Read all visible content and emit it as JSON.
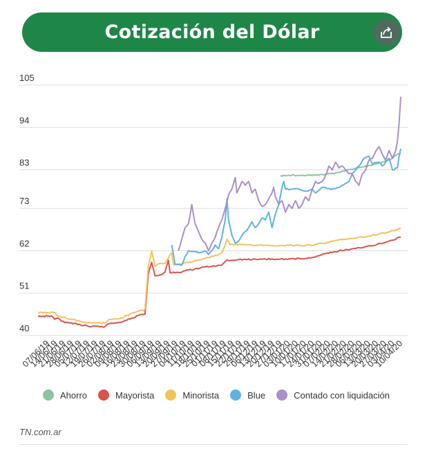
{
  "header": {
    "title": "Cotización del Dólar",
    "share_icon": "share-icon"
  },
  "chart_data": {
    "type": "line",
    "ylim": [
      40,
      105
    ],
    "yticks": [
      40,
      51,
      62,
      73,
      83,
      94,
      105
    ],
    "n_points": 218,
    "x_tick_labels": [
      "07/06/19",
      "14/06/19",
      "21/06/19",
      "28/06/19",
      "05/07/19",
      "12/07/19",
      "19/07/19",
      "26/07/19",
      "02/08/19",
      "09/08/19",
      "16/08/19",
      "23/08/19",
      "30/08/19",
      "06/09/19",
      "13/09/19",
      "20/09/19",
      "27/09/19",
      "04/10/19",
      "11/10/19",
      "18/10/19",
      "25/10/19",
      "01/11/19",
      "08/11/19",
      "15/11/19",
      "22/11/19",
      "29/11/19",
      "06/12/19",
      "13/12/19",
      "20/12/19",
      "27/12/19",
      "03/01/20",
      "10/01/20",
      "17/01/20",
      "24/01/20",
      "31/01/20",
      "07/02/20",
      "14/02/20",
      "21/02/20",
      "28/02/20",
      "06/03/20",
      "13/03/20",
      "20/03/20",
      "27/03/20",
      "03/04/20",
      "10/04/20"
    ],
    "series": [
      {
        "name": "Ahorro",
        "color": "#8dc3a1",
        "keyframes": [
          [
            145,
            81.5
          ],
          [
            150,
            81.6
          ],
          [
            160,
            81.5
          ],
          [
            170,
            81.8
          ],
          [
            178,
            82.2
          ],
          [
            185,
            83.0
          ],
          [
            195,
            83.8
          ],
          [
            205,
            84.8
          ],
          [
            210,
            85.5
          ],
          [
            214,
            86.8
          ],
          [
            217,
            87.3
          ]
        ]
      },
      {
        "name": "Mayorista",
        "color": "#d9534f",
        "keyframes": [
          [
            0,
            45
          ],
          [
            8,
            45.1
          ],
          [
            10,
            44.2
          ],
          [
            12,
            44.5
          ],
          [
            14,
            43.7
          ],
          [
            20,
            43.3
          ],
          [
            30,
            42.4
          ],
          [
            40,
            42.3
          ],
          [
            42,
            43
          ],
          [
            48,
            43.4
          ],
          [
            55,
            44.3
          ],
          [
            60,
            45.2
          ],
          [
            64,
            45.5
          ],
          [
            66,
            56
          ],
          [
            68,
            59
          ],
          [
            70,
            55.5
          ],
          [
            74,
            55.8
          ],
          [
            76,
            56.5
          ],
          [
            78,
            59.5
          ],
          [
            79,
            56.3
          ],
          [
            84,
            56.4
          ],
          [
            90,
            57
          ],
          [
            100,
            57.8
          ],
          [
            110,
            58.3
          ],
          [
            113,
            59.6
          ],
          [
            120,
            59.7
          ],
          [
            130,
            59.8
          ],
          [
            140,
            59.9
          ],
          [
            150,
            59.9
          ],
          [
            160,
            60
          ],
          [
            165,
            60.3
          ],
          [
            170,
            61
          ],
          [
            180,
            62
          ],
          [
            190,
            62.6
          ],
          [
            200,
            63.3
          ],
          [
            210,
            64.5
          ],
          [
            217,
            65.5
          ]
        ]
      },
      {
        "name": "Minorista",
        "color": "#efc45c",
        "keyframes": [
          [
            0,
            46
          ],
          [
            10,
            46
          ],
          [
            12,
            45
          ],
          [
            20,
            44.2
          ],
          [
            30,
            43.3
          ],
          [
            40,
            43.2
          ],
          [
            42,
            44
          ],
          [
            50,
            44.6
          ],
          [
            58,
            46
          ],
          [
            64,
            46.8
          ],
          [
            66,
            58
          ],
          [
            68,
            62
          ],
          [
            70,
            58
          ],
          [
            72,
            58.6
          ],
          [
            76,
            58.7
          ],
          [
            79,
            61
          ],
          [
            80,
            61.5
          ],
          [
            81,
            58.4
          ],
          [
            86,
            58.5
          ],
          [
            90,
            59
          ],
          [
            100,
            60
          ],
          [
            108,
            61
          ],
          [
            110,
            61.5
          ],
          [
            112,
            63.5
          ],
          [
            113,
            65
          ],
          [
            115,
            63.6
          ],
          [
            120,
            63.6
          ],
          [
            130,
            63.4
          ],
          [
            140,
            63.4
          ],
          [
            150,
            63.4
          ],
          [
            160,
            63.4
          ],
          [
            165,
            63.5
          ],
          [
            170,
            63.9
          ],
          [
            180,
            64.8
          ],
          [
            190,
            65.3
          ],
          [
            200,
            66
          ],
          [
            210,
            66.9
          ],
          [
            217,
            67.8
          ]
        ]
      },
      {
        "name": "Blue",
        "color": "#5fb2e2",
        "keyframes": [
          [
            80,
            63.5
          ],
          [
            82,
            58.5
          ],
          [
            86,
            58.3
          ],
          [
            88,
            60.5
          ],
          [
            90,
            62
          ],
          [
            92,
            61.8
          ],
          [
            96,
            61.5
          ],
          [
            100,
            62
          ],
          [
            102,
            61
          ],
          [
            104,
            62
          ],
          [
            106,
            63.5
          ],
          [
            108,
            62.5
          ],
          [
            110,
            65.5
          ],
          [
            112,
            70
          ],
          [
            113,
            75.5
          ],
          [
            114,
            70
          ],
          [
            116,
            66
          ],
          [
            118,
            64
          ],
          [
            120,
            64.5
          ],
          [
            122,
            66
          ],
          [
            124,
            67
          ],
          [
            126,
            68
          ],
          [
            128,
            69.5
          ],
          [
            130,
            68
          ],
          [
            132,
            69
          ],
          [
            134,
            70.5
          ],
          [
            136,
            70
          ],
          [
            138,
            72
          ],
          [
            140,
            68
          ],
          [
            142,
            71.5
          ],
          [
            144,
            74
          ],
          [
            146,
            78.5
          ],
          [
            147,
            80
          ],
          [
            148,
            78
          ],
          [
            152,
            78
          ],
          [
            156,
            78
          ],
          [
            160,
            77.5
          ],
          [
            164,
            78
          ],
          [
            166,
            77
          ],
          [
            170,
            78.5
          ],
          [
            176,
            78
          ],
          [
            180,
            78.4
          ],
          [
            182,
            79
          ],
          [
            186,
            80
          ],
          [
            188,
            82
          ],
          [
            192,
            84
          ],
          [
            195,
            86
          ],
          [
            198,
            86.5
          ],
          [
            200,
            84.5
          ],
          [
            204,
            85
          ],
          [
            206,
            84
          ],
          [
            210,
            86
          ],
          [
            212,
            83
          ],
          [
            215,
            83.5
          ],
          [
            216,
            86.5
          ],
          [
            217,
            88.5
          ]
        ]
      },
      {
        "name": "Contado con liquidación",
        "color": "#a890cb",
        "keyframes": [
          [
            84,
            62
          ],
          [
            86,
            65
          ],
          [
            88,
            68
          ],
          [
            90,
            69
          ],
          [
            92,
            74
          ],
          [
            94,
            69
          ],
          [
            96,
            67
          ],
          [
            98,
            65
          ],
          [
            100,
            64
          ],
          [
            102,
            62
          ],
          [
            104,
            64
          ],
          [
            106,
            65.5
          ],
          [
            108,
            68
          ],
          [
            110,
            70
          ],
          [
            112,
            73
          ],
          [
            114,
            76.5
          ],
          [
            116,
            78
          ],
          [
            118,
            81
          ],
          [
            119,
            77
          ],
          [
            120,
            78
          ],
          [
            122,
            80
          ],
          [
            124,
            79
          ],
          [
            126,
            80
          ],
          [
            128,
            77
          ],
          [
            130,
            78
          ],
          [
            132,
            75
          ],
          [
            134,
            73.5
          ],
          [
            136,
            74
          ],
          [
            138,
            75.5
          ],
          [
            140,
            77
          ],
          [
            141,
            78.5
          ],
          [
            142,
            76
          ],
          [
            144,
            74
          ],
          [
            146,
            75
          ],
          [
            148,
            72
          ],
          [
            150,
            74
          ],
          [
            152,
            73
          ],
          [
            154,
            75
          ],
          [
            156,
            73
          ],
          [
            158,
            74
          ],
          [
            160,
            76
          ],
          [
            162,
            75
          ],
          [
            164,
            78
          ],
          [
            166,
            80
          ],
          [
            168,
            79.5
          ],
          [
            170,
            80
          ],
          [
            172,
            81.5
          ],
          [
            174,
            84
          ],
          [
            176,
            83
          ],
          [
            178,
            85
          ],
          [
            180,
            83.5
          ],
          [
            182,
            84
          ],
          [
            184,
            83
          ],
          [
            186,
            82
          ],
          [
            188,
            82
          ],
          [
            190,
            80
          ],
          [
            192,
            79
          ],
          [
            194,
            82
          ],
          [
            196,
            83
          ],
          [
            198,
            85.5
          ],
          [
            200,
            86
          ],
          [
            202,
            87.8
          ],
          [
            204,
            89
          ],
          [
            206,
            87
          ],
          [
            208,
            85.5
          ],
          [
            210,
            88
          ],
          [
            212,
            86
          ],
          [
            214,
            88
          ],
          [
            215,
            90.5
          ],
          [
            216,
            95
          ],
          [
            217,
            102
          ]
        ]
      }
    ],
    "source": "TN.com.ar"
  }
}
